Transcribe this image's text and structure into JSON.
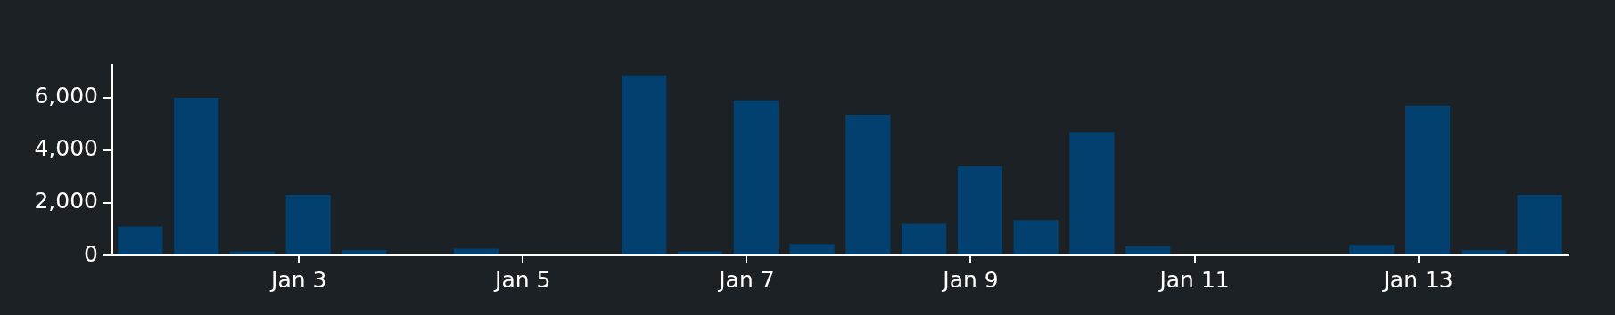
{
  "chart_data": {
    "type": "bar",
    "x": [
      "--01-01T14:00",
      "--01-02T02:00",
      "--01-02T14:00",
      "--01-03T02:00",
      "--01-03T14:00",
      "--01-04T14:00",
      "--01-06T02:00",
      "--01-06T14:00",
      "--01-07T02:00",
      "--01-07T14:00",
      "--01-08T02:00",
      "--01-08T14:00",
      "--01-09T02:00",
      "--01-09T14:00",
      "--01-10T02:00",
      "--01-10T14:00",
      "--01-12T14:00",
      "--01-13T02:00",
      "--01-13T14:00",
      "--01-14T02:00"
    ],
    "series": [
      {
        "color": "#02406f",
        "values": [
          1100,
          6000,
          150,
          2300,
          200,
          250,
          6850,
          150,
          5900,
          430,
          5350,
          1200,
          3400,
          1350,
          4700,
          350,
          400,
          5700,
          200,
          2300
        ]
      }
    ],
    "xlim": [
      "--01-01T08:00",
      "--01-14T08:00"
    ],
    "xticks": [
      {
        "value": "--01-03",
        "label": "Jan 3"
      },
      {
        "value": "--01-05",
        "label": "Jan 5"
      },
      {
        "value": "--01-07",
        "label": "Jan 7"
      },
      {
        "value": "--01-09",
        "label": "Jan 9"
      },
      {
        "value": "--01-11",
        "label": "Jan 11"
      },
      {
        "value": "--01-13",
        "label": "Jan 13"
      }
    ],
    "ylim": [
      0,
      7250
    ],
    "yticks": [
      {
        "value": 0,
        "label": "0"
      },
      {
        "value": 2000,
        "label": "2,000"
      },
      {
        "value": 4000,
        "label": "4,000"
      },
      {
        "value": 6000,
        "label": "6,000"
      }
    ],
    "grid": false,
    "legend": false
  }
}
